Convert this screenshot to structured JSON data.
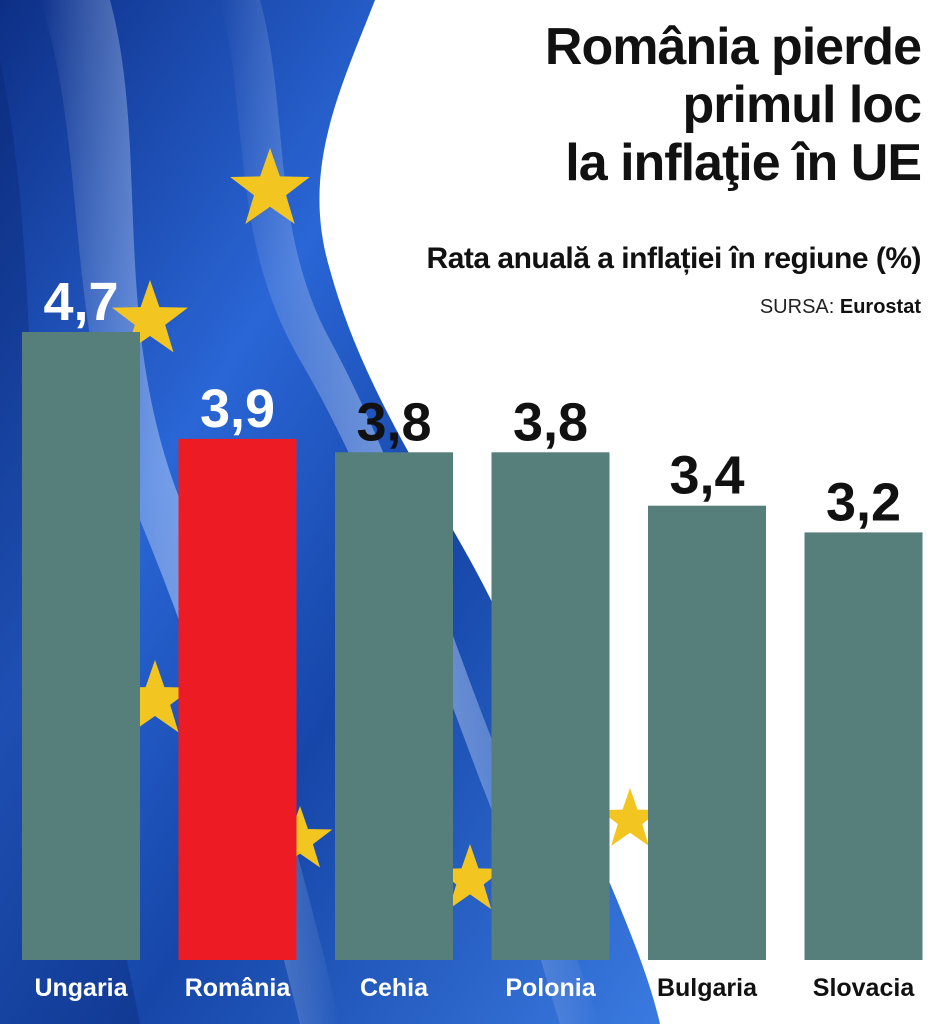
{
  "header": {
    "title_lines": [
      "România pierde",
      "primul loc",
      "la inflaţie în UE"
    ],
    "subtitle": "Rata anuală a inflației în regiune (%)",
    "source_prefix": "SURSA:",
    "source_name": "Eurostat"
  },
  "colors": {
    "bar": "#567e7b",
    "highlight_bar": "#ed1c24",
    "flag_blue": "#1f56c4",
    "flag_star": "#f2c521",
    "label_dark": "#111111",
    "label_light": "#ffffff"
  },
  "chart_data": {
    "type": "bar",
    "title": "România pierde primul loc la inflaţie în UE",
    "subtitle": "Rata anuală a inflației în regiune (%)",
    "categories": [
      "Ungaria",
      "România",
      "Cehia",
      "Polonia",
      "Bulgaria",
      "Slovacia"
    ],
    "values": [
      4.7,
      3.9,
      3.8,
      3.8,
      3.4,
      3.2
    ],
    "value_labels": [
      "4,7",
      "3,9",
      "3,8",
      "3,8",
      "3,4",
      "3,2"
    ],
    "highlight": "România",
    "xlabel": "",
    "ylabel": "",
    "ylim": [
      0,
      4.7
    ],
    "grid": false,
    "legend": "none",
    "source": "Eurostat"
  }
}
